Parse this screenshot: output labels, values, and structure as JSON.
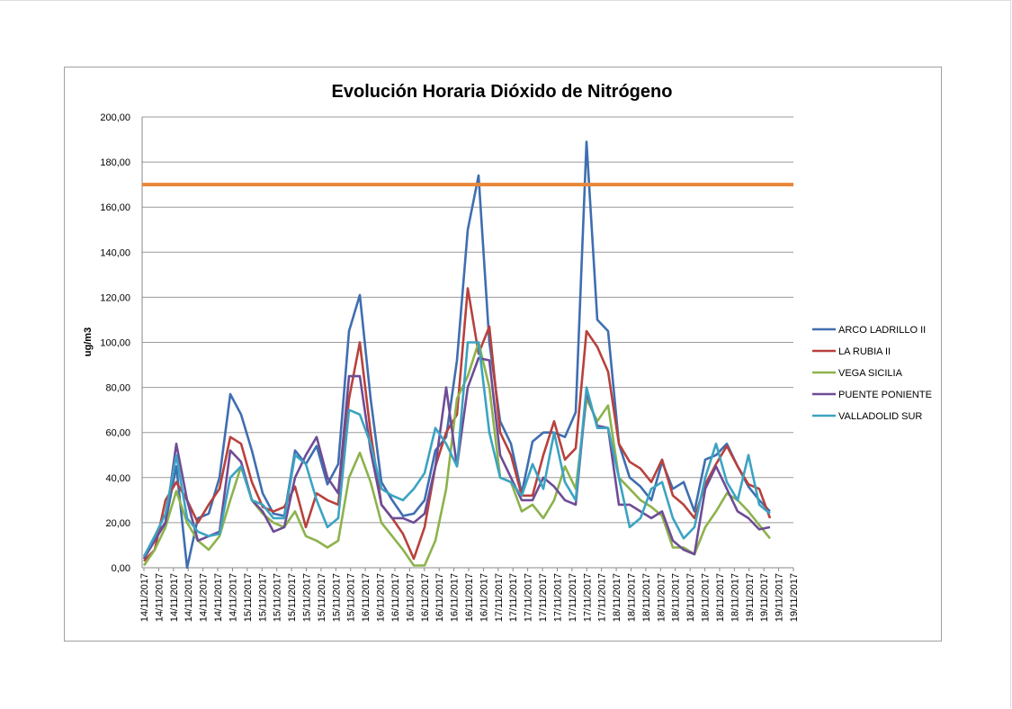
{
  "chart_data": {
    "type": "line",
    "title": "Evolución Horaria Dióxido de Nitrógeno",
    "xlabel": "",
    "ylabel": "ug/m3",
    "ylim": [
      0,
      200
    ],
    "yticks": [
      "0,00",
      "20,00",
      "40,00",
      "60,00",
      "80,00",
      "100,00",
      "120,00",
      "140,00",
      "160,00",
      "180,00",
      "200,00"
    ],
    "grid": true,
    "legend_position": "right",
    "x_tick_labels": [
      "14/11/2017",
      "14/11/2017",
      "14/11/2017",
      "14/11/2017",
      "14/11/2017",
      "14/11/2017",
      "14/11/2017",
      "15/11/2017",
      "15/11/2017",
      "15/11/2017",
      "15/11/2017",
      "15/11/2017",
      "15/11/2017",
      "15/11/2017",
      "15/11/2017",
      "16/11/2017",
      "16/11/2017",
      "16/11/2017",
      "16/11/2017",
      "16/11/2017",
      "16/11/2017",
      "16/11/2017",
      "16/11/2017",
      "16/11/2017",
      "17/11/2017",
      "17/11/2017",
      "17/11/2017",
      "17/11/2017",
      "17/11/2017",
      "17/11/2017",
      "17/11/2017",
      "17/11/2017",
      "18/11/2017",
      "18/11/2017",
      "18/11/2017",
      "18/11/2017",
      "18/11/2017",
      "18/11/2017",
      "18/11/2017",
      "18/11/2017",
      "18/11/2017",
      "19/11/2017",
      "19/11/2017",
      "19/11/2017",
      "19/11/2017"
    ],
    "limit_line": {
      "value": 170,
      "color": "#E8873A"
    },
    "series": [
      {
        "name": "ARCO LADRILLO II",
        "color": "#3F6EB0",
        "values": [
          4,
          14,
          20,
          45,
          0,
          22,
          24,
          40,
          77,
          68,
          52,
          33,
          24,
          23,
          52,
          46,
          54,
          37,
          46,
          105,
          121,
          75,
          38,
          30,
          23,
          24,
          30,
          52,
          58,
          92,
          150,
          174,
          100,
          65,
          55,
          33,
          56,
          60,
          60,
          58,
          69,
          189,
          110,
          105,
          55,
          40,
          36,
          30,
          47,
          35,
          38,
          25,
          48,
          50,
          55,
          45,
          36,
          30,
          25
        ]
      },
      {
        "name": "LA RUBIA II",
        "color": "#B8413C",
        "values": [
          3,
          8,
          30,
          38,
          30,
          20,
          28,
          35,
          58,
          55,
          38,
          27,
          25,
          27,
          36,
          18,
          33,
          30,
          28,
          75,
          100,
          60,
          28,
          22,
          15,
          4,
          18,
          45,
          60,
          68,
          124,
          95,
          107,
          60,
          50,
          32,
          32,
          50,
          65,
          48,
          53,
          105,
          98,
          87,
          55,
          47,
          44,
          38,
          48,
          32,
          28,
          22,
          37,
          46,
          54,
          45,
          37,
          35,
          22
        ]
      },
      {
        "name": "VEGA SICILIA",
        "color": "#8DB24C",
        "values": [
          1,
          8,
          18,
          34,
          20,
          12,
          8,
          14,
          30,
          45,
          30,
          24,
          20,
          18,
          25,
          14,
          12,
          9,
          12,
          40,
          51,
          38,
          20,
          14,
          8,
          1,
          1,
          12,
          35,
          75,
          85,
          100,
          80,
          40,
          38,
          25,
          28,
          22,
          30,
          45,
          35,
          75,
          65,
          72,
          40,
          35,
          30,
          27,
          23,
          9,
          9,
          6,
          18,
          25,
          33,
          30,
          25,
          19,
          13
        ]
      },
      {
        "name": "PUENTE PONIENTE",
        "color": "#6E4C96",
        "values": [
          4,
          12,
          20,
          55,
          30,
          12,
          14,
          16,
          52,
          47,
          30,
          25,
          16,
          18,
          40,
          50,
          58,
          40,
          33,
          85,
          85,
          52,
          28,
          22,
          22,
          20,
          24,
          45,
          80,
          45,
          80,
          93,
          92,
          50,
          40,
          30,
          30,
          40,
          36,
          30,
          28,
          78,
          63,
          62,
          28,
          28,
          25,
          22,
          25,
          12,
          8,
          6,
          35,
          45,
          35,
          25,
          22,
          17,
          18
        ]
      },
      {
        "name": "VALLADOLID SUR",
        "color": "#3BA3C2",
        "values": [
          5,
          14,
          24,
          50,
          22,
          16,
          14,
          15,
          40,
          45,
          30,
          28,
          22,
          22,
          50,
          46,
          30,
          18,
          22,
          70,
          68,
          55,
          35,
          32,
          30,
          35,
          42,
          62,
          55,
          45,
          100,
          100,
          60,
          40,
          38,
          32,
          46,
          35,
          60,
          38,
          30,
          80,
          62,
          62,
          40,
          18,
          22,
          35,
          38,
          22,
          13,
          18,
          40,
          55,
          38,
          30,
          50,
          28,
          24
        ]
      }
    ]
  }
}
